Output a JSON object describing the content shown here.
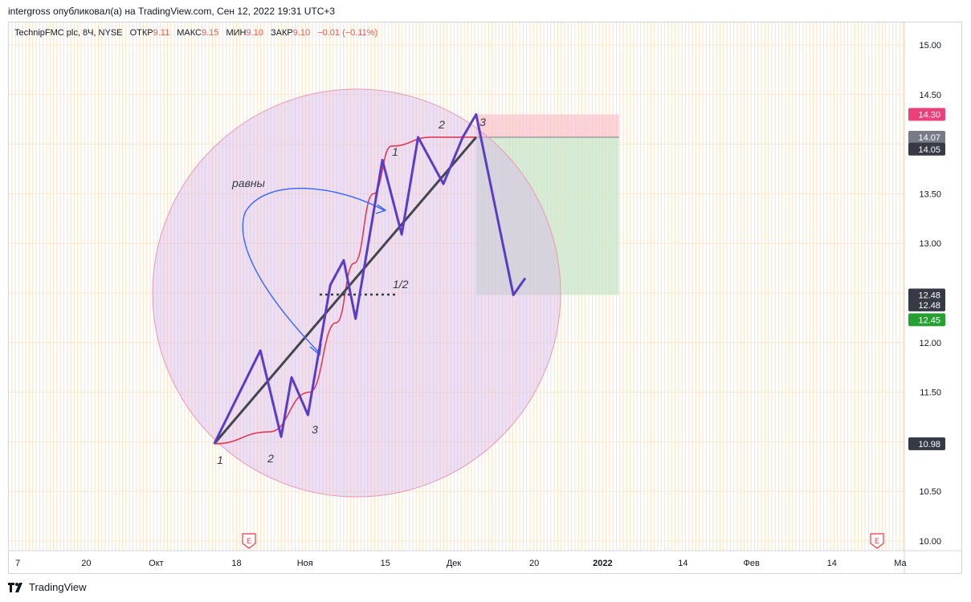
{
  "header": {
    "publisher": "intergross опубликовал(а) на TradingView.com, Сен 12, 2022 19:31 UTC+3"
  },
  "legend": {
    "symbol": "TechnipFMC plc, 8Ч, NYSE",
    "open_label": "ОТКР",
    "open": "9.11",
    "high_label": "МАКС",
    "high": "9.15",
    "low_label": "МИН",
    "low": "9.10",
    "close_label": "ЗАКР",
    "close": "9.10",
    "change": "−0.01 (−0.11%)"
  },
  "footer": {
    "brand": "TradingView"
  },
  "colors": {
    "wave": "#5b3cc4",
    "trend": "#434651",
    "curve": "#e03a55",
    "arrow": "#3366ff",
    "circle_fill": "#d6b8e8",
    "stop_zone": "#f8c6cc",
    "target_zone": "#c9e6c9",
    "badge_red": "#ec407a",
    "badge_gray": "#787b86",
    "badge_dark": "#363a45",
    "badge_green": "#26a033"
  },
  "chart_data": {
    "type": "line",
    "ylim": [
      10.0,
      15.0
    ],
    "ytick_labels": [
      "15.00",
      "14.50",
      "14.00",
      "13.50",
      "13.00",
      "12.50",
      "12.00",
      "11.50",
      "11.00",
      "10.50",
      "10.00"
    ],
    "yticks": [
      15.0,
      14.5,
      14.0,
      13.5,
      13.0,
      12.5,
      12.0,
      11.5,
      11.0,
      10.5,
      10.0
    ],
    "xtick_labels": [
      "7",
      "20",
      "Окт",
      "18",
      "Ноя",
      "15",
      "Дек",
      "20",
      "2022",
      "14",
      "Фев",
      "14",
      "Ма"
    ],
    "xticks": [
      0.6,
      5.2,
      9.9,
      15.3,
      19.9,
      25.3,
      29.9,
      35.3,
      39.9,
      45.3,
      49.9,
      55.3,
      59.9
    ],
    "xlim": [
      0,
      61.5
    ],
    "series": [
      {
        "x": [
          13.8,
          16.9,
          18.3,
          19.0,
          20.1,
          21.6,
          22.5,
          23.3,
          25.1,
          26.4,
          27.5,
          29.2,
          30.5,
          31.4,
          33.9,
          34.7
        ],
        "y": [
          10.98,
          11.92,
          11.05,
          11.65,
          11.27,
          12.58,
          12.83,
          12.24,
          13.84,
          13.09,
          14.07,
          13.6,
          14.07,
          14.3,
          12.48,
          12.65
        ]
      },
      {
        "x": [
          13.8,
          31.4
        ],
        "y": [
          10.98,
          14.07
        ]
      },
      {
        "x": [
          13.8,
          17.5,
          20.2,
          22.0,
          23.2,
          24.5,
          25.7,
          28.4,
          31.4
        ],
        "y": [
          10.98,
          11.1,
          11.5,
          12.2,
          12.8,
          13.5,
          13.98,
          14.07,
          14.07
        ]
      }
    ],
    "price_badges": [
      "14.30",
      "14.07",
      "14.05",
      "12.48",
      "12.48",
      "12.45",
      "10.98"
    ],
    "earnings_markers": [
      "E",
      "E"
    ],
    "annotations": {
      "left_wave": [
        "1",
        "2",
        "3"
      ],
      "right_wave": [
        "1",
        "2",
        "3"
      ],
      "equal_text": "равны",
      "half_text": "1/2"
    }
  }
}
